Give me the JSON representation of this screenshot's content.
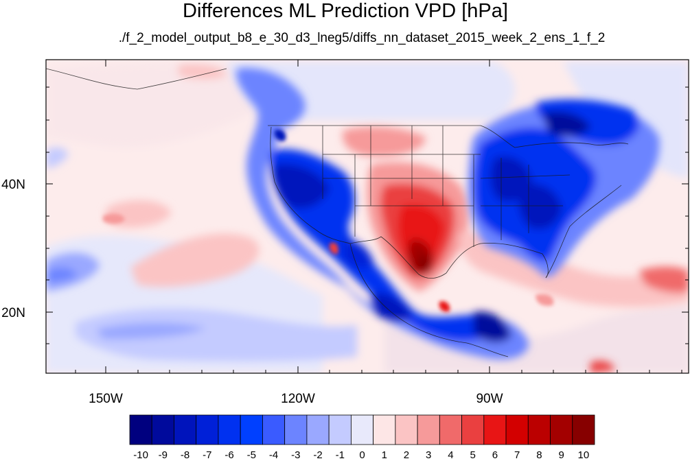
{
  "title": "Differences ML Prediction VPD [hPa]",
  "subtitle": "./f_2_model_output_b8_e_30_d3_lneg5/diffs_nn_dataset_2015_week_2_ens_1_f_2",
  "lon_labels": [
    "150W",
    "120W",
    "90W"
  ],
  "lat_labels": [
    "40N",
    "20N"
  ],
  "map": {
    "lon_range": [
      -160.5,
      -61
    ],
    "lat_range": [
      10,
      58.5
    ],
    "lon_ticks": [
      -150,
      -120,
      -90
    ],
    "lat_ticks": [
      40,
      20
    ],
    "field": "VPD difference",
    "units": "hPa"
  },
  "colorbar": {
    "labels": [
      "-10",
      "-9",
      "-8",
      "-7",
      "-6",
      "-5",
      "-4",
      "-3",
      "-2",
      "-1",
      "0",
      "1",
      "2",
      "3",
      "4",
      "5",
      "6",
      "7",
      "8",
      "9",
      "10"
    ],
    "colors": [
      "#00007f",
      "#000a9c",
      "#0014bc",
      "#0020d8",
      "#0031f0",
      "#0040ff",
      "#3a5bff",
      "#6c84ff",
      "#9aa8ff",
      "#c4cbff",
      "#e8e9fb",
      "#fde6e6",
      "#fbc4c4",
      "#f69a9a",
      "#f06a6a",
      "#ea4040",
      "#e81515",
      "#d30000",
      "#bb0000",
      "#a30000",
      "#870000"
    ]
  }
}
